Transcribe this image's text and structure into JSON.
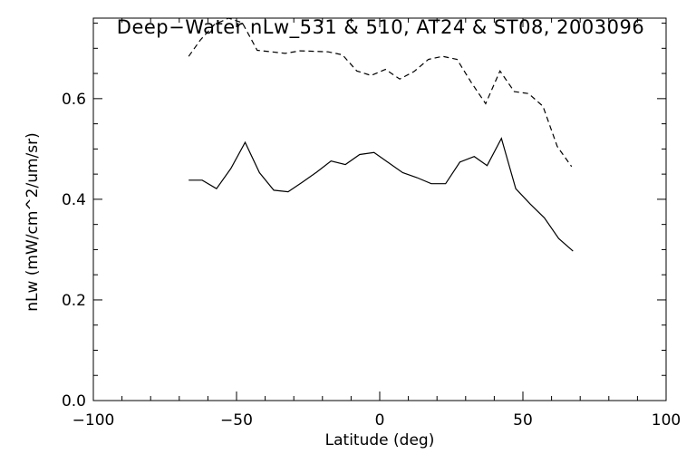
{
  "chart_data": {
    "type": "line",
    "title": "Deep−Water nLw_531 & 510, AT24 & ST08, 2003096",
    "xlabel": "Latitude (deg)",
    "ylabel": "nLw (mW/cm^2/um/sr)",
    "xlim": [
      -100,
      100
    ],
    "ylim": [
      0.0,
      0.76
    ],
    "xticks": [
      -100,
      -50,
      0,
      50,
      100
    ],
    "yticks": [
      0.0,
      0.2,
      0.4,
      0.6
    ],
    "ytick_labels": [
      "0.0",
      "0.2",
      "0.4",
      "0.6"
    ],
    "grid": false,
    "series": [
      {
        "style": "dashed",
        "x": [
          -66.7,
          -62.7,
          -57.8,
          -52.8,
          -48.0,
          -42.8,
          -37.8,
          -33.0,
          -27.9,
          -23.0,
          -18.0,
          -13.0,
          -8.0,
          -3.0,
          2.0,
          7.0,
          12.0,
          17.0,
          22.0,
          27.0,
          32.0,
          37.0,
          42.0,
          47.0,
          52.0,
          57.0,
          62.0,
          67.0
        ],
        "y": [
          0.684,
          0.716,
          0.747,
          0.76,
          0.751,
          0.696,
          0.693,
          0.69,
          0.695,
          0.694,
          0.693,
          0.687,
          0.655,
          0.646,
          0.658,
          0.639,
          0.654,
          0.678,
          0.684,
          0.678,
          0.632,
          0.59,
          0.655,
          0.614,
          0.61,
          0.585,
          0.505,
          0.465
        ]
      },
      {
        "style": "solid",
        "x": [
          -66.7,
          -62.0,
          -57.0,
          -52.0,
          -47.0,
          -42.0,
          -37.0,
          -32.0,
          -27.0,
          -22.0,
          -17.0,
          -12.0,
          -7.0,
          -2.0,
          3.0,
          8.0,
          13.0,
          18.0,
          23.0,
          28.0,
          33.0,
          37.5,
          42.5,
          47.5,
          52.5,
          57.5,
          62.5,
          67.5
        ],
        "y": [
          0.438,
          0.438,
          0.421,
          0.461,
          0.513,
          0.453,
          0.418,
          0.415,
          0.434,
          0.454,
          0.476,
          0.469,
          0.489,
          0.493,
          0.473,
          0.453,
          0.443,
          0.431,
          0.431,
          0.474,
          0.485,
          0.467,
          0.521,
          0.421,
          0.391,
          0.363,
          0.322,
          0.297
        ]
      }
    ]
  }
}
